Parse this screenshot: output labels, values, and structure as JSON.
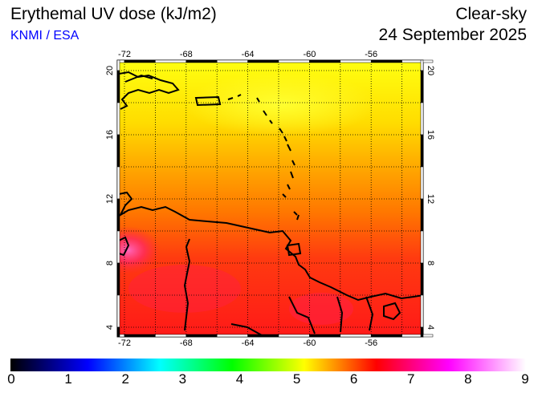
{
  "header": {
    "title": "Erythemal UV dose (kJ/m2)",
    "credit": "KNMI / ESA",
    "product": "Clear-sky",
    "date": "24 September 2025"
  },
  "map": {
    "lon_ticks": [
      "-72",
      "-68",
      "-64",
      "-60",
      "-56"
    ],
    "lat_ticks": [
      "20",
      "16",
      "12",
      "8",
      "4"
    ],
    "colors": {
      "north": "#ffee00",
      "mid": "#ff9900",
      "south": "#ff1a10",
      "peak": "#ff55aa"
    }
  },
  "colorbar": {
    "labels": [
      "0",
      "1",
      "2",
      "3",
      "4",
      "5",
      "6",
      "7",
      "8",
      "9"
    ],
    "range": [
      0,
      9
    ]
  }
}
